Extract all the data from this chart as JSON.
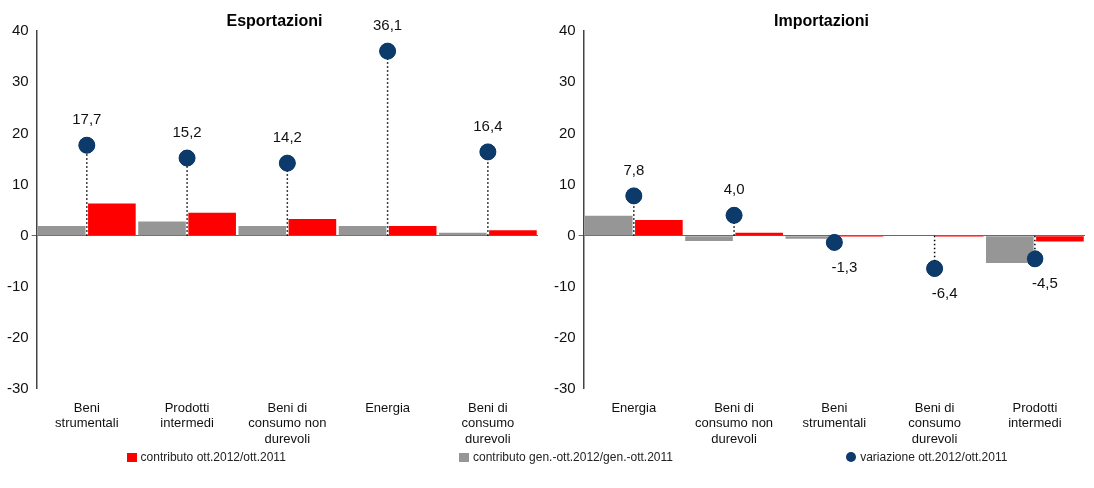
{
  "chart_data": [
    {
      "type": "bar",
      "title": "Esportazioni",
      "categories": [
        "Beni strumentali",
        "Prodotti intermedi",
        "Beni di consumo non durevoli",
        "Energia",
        "Beni di consumo durevoli"
      ],
      "ylim": [
        -30,
        40
      ],
      "yticks": [
        -30,
        -20,
        -10,
        0,
        10,
        20,
        30,
        40
      ],
      "legend": "bottom",
      "series": [
        {
          "name": "contributo ott.2012/ott.2011",
          "color": "#ff0000",
          "values": [
            6.3,
            4.5,
            3.3,
            1.9,
            1.1
          ]
        },
        {
          "name": "contributo gen.-ott.2012/gen.-ott.2011",
          "color": "#969696",
          "values": [
            1.9,
            2.8,
            1.9,
            1.9,
            0.6
          ]
        },
        {
          "name": "variazione ott.2012/ott.2011",
          "type": "lollipop",
          "marker": "circle",
          "line_style": "dotted",
          "color": "#0b3a6b",
          "values": [
            17.7,
            15.2,
            14.2,
            36.1,
            16.4
          ],
          "value_labels": [
            "17,7",
            "15,2",
            "14,2",
            "36,1",
            "16,4"
          ]
        }
      ]
    },
    {
      "type": "bar",
      "title": "Importazioni",
      "categories": [
        "Energia",
        "Beni di consumo non durevoli",
        "Beni strumentali",
        "Beni di consumo durevoli",
        "Prodotti intermedi"
      ],
      "ylim": [
        -30,
        40
      ],
      "yticks": [
        -30,
        -20,
        -10,
        0,
        10,
        20,
        30,
        40
      ],
      "series": [
        {
          "color": "#ff0000",
          "values": [
            3.1,
            0.6,
            -0.2,
            -0.2,
            -1.1
          ]
        },
        {
          "color": "#969696",
          "values": [
            3.9,
            -1.0,
            -0.6,
            -0.1,
            -5.3
          ]
        },
        {
          "type": "lollipop",
          "marker": "circle",
          "line_style": "dotted",
          "color": "#0b3a6b",
          "values": [
            7.8,
            4.0,
            -1.3,
            -6.4,
            -4.5
          ],
          "value_labels": [
            "7,8",
            "4,0",
            "-1,3",
            "-6,4",
            "-4,5"
          ]
        }
      ]
    }
  ]
}
